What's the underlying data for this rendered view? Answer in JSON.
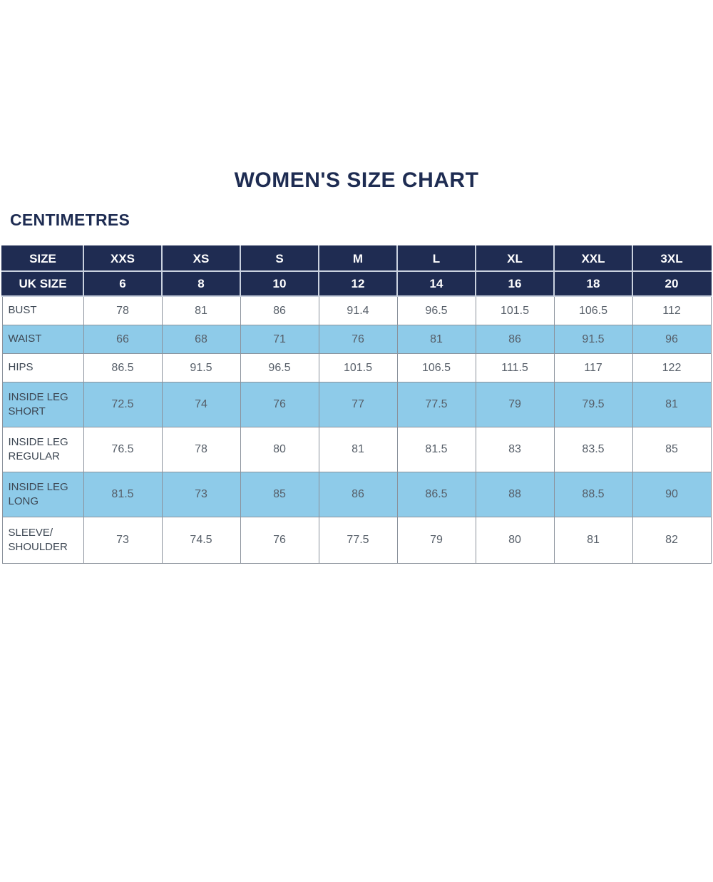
{
  "page": {
    "title": "WOMEN'S SIZE CHART",
    "unit_label": "CENTIMETRES"
  },
  "colors": {
    "navy_header": "#1f2c52",
    "light_blue_row": "#8ecbe9",
    "white_row": "#ffffff",
    "title_text": "#1e2c52",
    "header_text": "#ffffff",
    "label_text": "#3d4753",
    "value_text": "#565e68",
    "cell_border": "#8b929c",
    "header_divider": "#c9d1de"
  },
  "chart_data": {
    "type": "table",
    "title": "WOMEN'S SIZE CHART",
    "unit_label": "CENTIMETRES",
    "header": [
      "SIZE",
      "XXS",
      "XS",
      "S",
      "M",
      "L",
      "XL",
      "XXL",
      "3XL"
    ],
    "uk_size_row": [
      "UK SIZE",
      "6",
      "8",
      "10",
      "12",
      "14",
      "16",
      "18",
      "20"
    ],
    "rows": [
      {
        "label": "BUST",
        "values": [
          "78",
          "81",
          "86",
          "91.4",
          "96.5",
          "101.5",
          "106.5",
          "112"
        ]
      },
      {
        "label": "WAIST",
        "values": [
          "66",
          "68",
          "71",
          "76",
          "81",
          "86",
          "91.5",
          "96"
        ]
      },
      {
        "label": "HIPS",
        "values": [
          "86.5",
          "91.5",
          "96.5",
          "101.5",
          "106.5",
          "111.5",
          "117",
          "122"
        ]
      },
      {
        "label": "INSIDE LEG SHORT",
        "values": [
          "72.5",
          "74",
          "76",
          "77",
          "77.5",
          "79",
          "79.5",
          "81"
        ]
      },
      {
        "label": "INSIDE LEG REGULAR",
        "values": [
          "76.5",
          "78",
          "80",
          "81",
          "81.5",
          "83",
          "83.5",
          "85"
        ]
      },
      {
        "label": "INSIDE LEG LONG",
        "values": [
          "81.5",
          "73",
          "85",
          "86",
          "86.5",
          "88",
          "88.5",
          "90"
        ]
      },
      {
        "label": "SLEEVE/ SHOULDER",
        "values": [
          "73",
          "74.5",
          "76",
          "77.5",
          "79",
          "80",
          "81",
          "82"
        ]
      }
    ],
    "layout": {
      "striping": "alternating white and light blue data rows, starting white",
      "header_rows": 2
    }
  }
}
